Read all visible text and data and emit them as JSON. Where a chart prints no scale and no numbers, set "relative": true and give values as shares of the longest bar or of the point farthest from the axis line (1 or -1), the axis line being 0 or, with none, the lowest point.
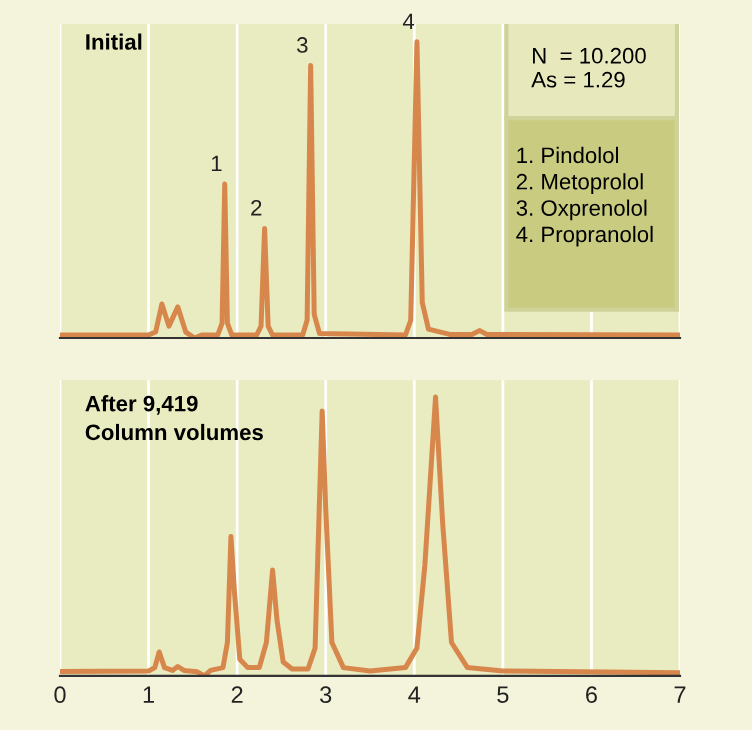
{
  "chart_data": [
    {
      "type": "line",
      "relative": true,
      "xlim": [
        0,
        7
      ],
      "tick_labels": false,
      "grid": "x",
      "line_style": "solid",
      "annotations": [
        "Initial",
        "N  = 10.200\nAs = 1.29",
        "1. Pindolol\n2. Metoprolol\n3. Oxprenolol\n4. Propranolol",
        {
          "text": "1",
          "x": 1.86,
          "y": 0.52
        },
        {
          "text": "2",
          "x": 2.31,
          "y": 0.37
        },
        {
          "text": "3",
          "x": 2.83,
          "y": 0.92
        },
        {
          "text": "4",
          "x": 4.03,
          "y": 1.0
        }
      ],
      "series": [
        {
          "color": "#d8874c",
          "x": [
            0,
            1.0,
            1.08,
            1.15,
            1.23,
            1.33,
            1.42,
            1.52,
            1.6,
            1.78,
            1.83,
            1.86,
            1.89,
            1.94,
            2.22,
            2.27,
            2.31,
            2.35,
            2.4,
            2.74,
            2.79,
            2.83,
            2.87,
            2.93,
            3.9,
            3.96,
            4.03,
            4.09,
            4.16,
            4.4,
            4.65,
            4.74,
            4.82,
            7
          ],
          "values": [
            0.01,
            0.01,
            0.02,
            0.115,
            0.04,
            0.105,
            0.02,
            0,
            0.01,
            0.01,
            0.05,
            0.52,
            0.05,
            0.01,
            0.01,
            0.04,
            0.37,
            0.04,
            0.01,
            0.01,
            0.06,
            0.92,
            0.08,
            0.015,
            0.01,
            0.06,
            1.0,
            0.12,
            0.03,
            0.012,
            0.012,
            0.025,
            0.012,
            0.01
          ]
        }
      ]
    },
    {
      "type": "line",
      "relative": true,
      "xlim": [
        0,
        7
      ],
      "xticks": [
        0,
        1,
        2,
        3,
        4,
        5,
        6,
        7
      ],
      "tick_labels": "x",
      "grid": "x",
      "line_style": "solid",
      "annotations": [
        "After 9,419\nColumn volumes"
      ],
      "series": [
        {
          "color": "#d8874c",
          "x": [
            0,
            1.0,
            1.07,
            1.12,
            1.18,
            1.27,
            1.33,
            1.4,
            1.55,
            1.63,
            1.7,
            1.84,
            1.89,
            1.93,
            1.97,
            2.03,
            2.12,
            2.25,
            2.33,
            2.4,
            2.45,
            2.52,
            2.62,
            2.8,
            2.88,
            2.96,
            3.0,
            3.07,
            3.2,
            3.5,
            3.9,
            4.03,
            4.12,
            4.24,
            4.32,
            4.42,
            4.6,
            5.0,
            7
          ],
          "values": [
            0.016,
            0.018,
            0.03,
            0.086,
            0.03,
            0.02,
            0.034,
            0.02,
            0.015,
            0,
            0.02,
            0.03,
            0.12,
            0.5,
            0.3,
            0.06,
            0.03,
            0.03,
            0.12,
            0.38,
            0.2,
            0.05,
            0.025,
            0.025,
            0.1,
            0.95,
            0.6,
            0.12,
            0.03,
            0.018,
            0.03,
            0.1,
            0.4,
            1.0,
            0.55,
            0.12,
            0.03,
            0.018,
            0.012
          ]
        }
      ]
    }
  ]
}
